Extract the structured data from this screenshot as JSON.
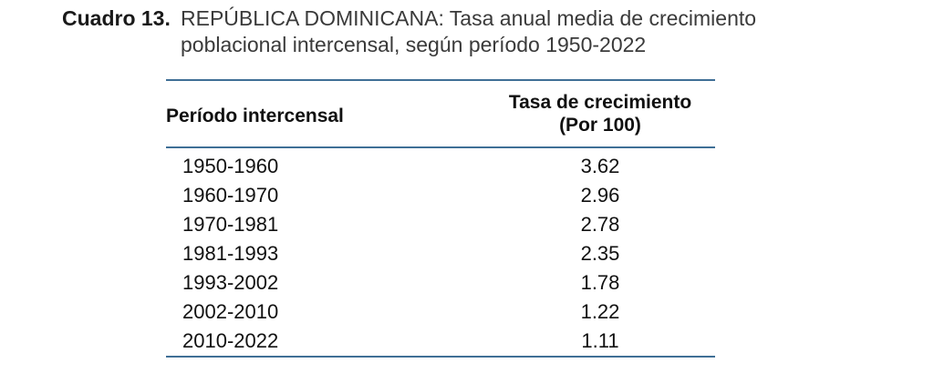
{
  "title": {
    "label": "Cuadro 13.",
    "line1": "REPÚBLICA DOMINICANA: Tasa anual media de crecimiento",
    "line2": "poblacional intercensal, según período 1950-2022"
  },
  "table": {
    "headers": {
      "period": "Período intercensal",
      "rate_line1": "Tasa de crecimiento",
      "rate_line2": "(Por 100)"
    },
    "rows": [
      {
        "period": "1950-1960",
        "rate": "3.62"
      },
      {
        "period": "1960-1970",
        "rate": "2.96"
      },
      {
        "period": "1970-1981",
        "rate": "2.78"
      },
      {
        "period": "1981-1993",
        "rate": "2.35"
      },
      {
        "period": "1993-2002",
        "rate": "1.78"
      },
      {
        "period": "2002-2010",
        "rate": "1.22"
      },
      {
        "period": "2010-2022",
        "rate": "1.11"
      }
    ]
  },
  "colors": {
    "rule": "#3f6f96"
  }
}
